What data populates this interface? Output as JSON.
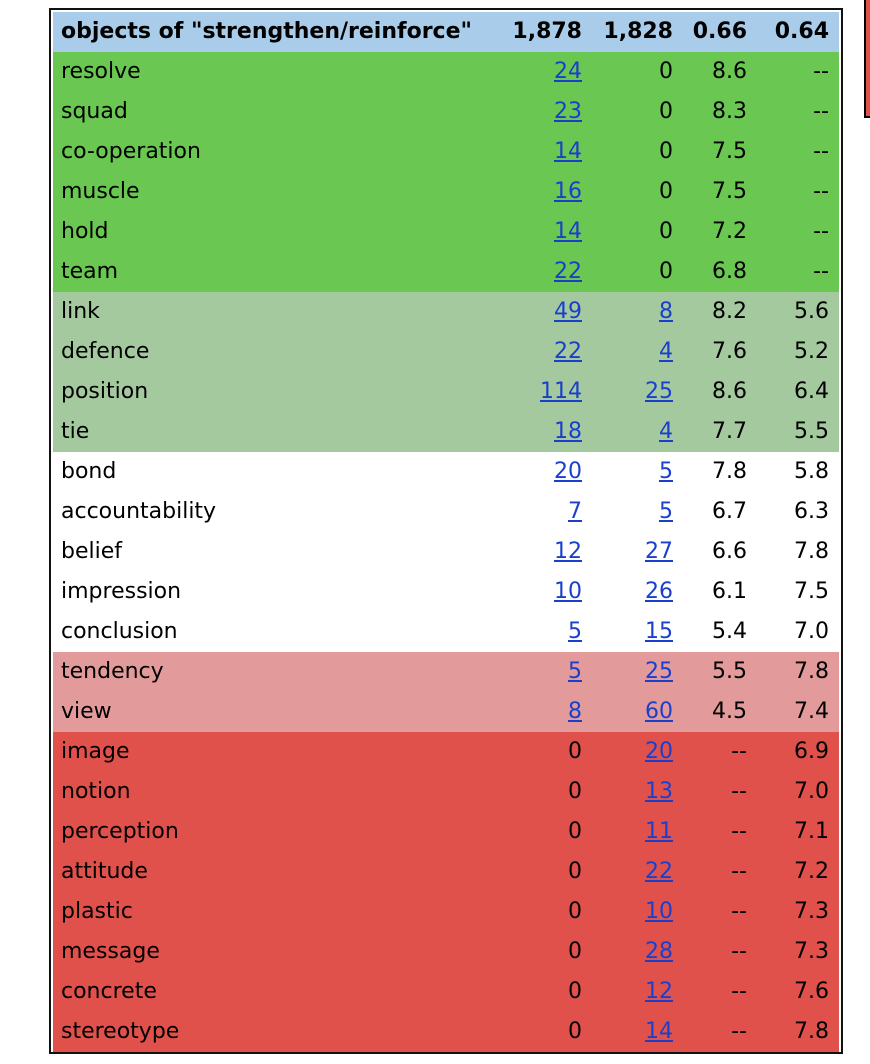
{
  "header": {
    "title": "objects of \"strengthen/reinforce\"",
    "col_a": "1,878",
    "col_b": "1,828",
    "col_c": "0.66",
    "col_d": "0.64"
  },
  "colors": {
    "header": "#a8cce9",
    "group_strong_a": "#69c752",
    "group_mild_a": "#a5c99f",
    "group_neutral": "#ffffff",
    "group_mild_b": "#e29b9a",
    "group_strong_b": "#e0514c",
    "link": "#1a3fcc"
  },
  "rows": [
    {
      "word": "resolve",
      "a": "24",
      "b": "0",
      "c": "8.6",
      "d": "--",
      "group": "g1",
      "a_link": true,
      "b_link": false
    },
    {
      "word": "squad",
      "a": "23",
      "b": "0",
      "c": "8.3",
      "d": "--",
      "group": "g1",
      "a_link": true,
      "b_link": false
    },
    {
      "word": "co-operation",
      "a": "14",
      "b": "0",
      "c": "7.5",
      "d": "--",
      "group": "g1",
      "a_link": true,
      "b_link": false
    },
    {
      "word": "muscle",
      "a": "16",
      "b": "0",
      "c": "7.5",
      "d": "--",
      "group": "g1",
      "a_link": true,
      "b_link": false
    },
    {
      "word": "hold",
      "a": "14",
      "b": "0",
      "c": "7.2",
      "d": "--",
      "group": "g1",
      "a_link": true,
      "b_link": false
    },
    {
      "word": "team",
      "a": "22",
      "b": "0",
      "c": "6.8",
      "d": "--",
      "group": "g1",
      "a_link": true,
      "b_link": false
    },
    {
      "word": "link",
      "a": "49",
      "b": "8",
      "c": "8.2",
      "d": "5.6",
      "group": "g2",
      "a_link": true,
      "b_link": true
    },
    {
      "word": "defence",
      "a": "22",
      "b": "4",
      "c": "7.6",
      "d": "5.2",
      "group": "g2",
      "a_link": true,
      "b_link": true
    },
    {
      "word": "position",
      "a": "114",
      "b": "25",
      "c": "8.6",
      "d": "6.4",
      "group": "g2",
      "a_link": true,
      "b_link": true
    },
    {
      "word": "tie",
      "a": "18",
      "b": "4",
      "c": "7.7",
      "d": "5.5",
      "group": "g2",
      "a_link": true,
      "b_link": true
    },
    {
      "word": "bond",
      "a": "20",
      "b": "5",
      "c": "7.8",
      "d": "5.8",
      "group": "g3",
      "a_link": true,
      "b_link": true
    },
    {
      "word": "accountability",
      "a": "7",
      "b": "5",
      "c": "6.7",
      "d": "6.3",
      "group": "g3",
      "a_link": true,
      "b_link": true
    },
    {
      "word": "belief",
      "a": "12",
      "b": "27",
      "c": "6.6",
      "d": "7.8",
      "group": "g3",
      "a_link": true,
      "b_link": true
    },
    {
      "word": "impression",
      "a": "10",
      "b": "26",
      "c": "6.1",
      "d": "7.5",
      "group": "g3",
      "a_link": true,
      "b_link": true
    },
    {
      "word": "conclusion",
      "a": "5",
      "b": "15",
      "c": "5.4",
      "d": "7.0",
      "group": "g3",
      "a_link": true,
      "b_link": true
    },
    {
      "word": "tendency",
      "a": "5",
      "b": "25",
      "c": "5.5",
      "d": "7.8",
      "group": "g4",
      "a_link": true,
      "b_link": true
    },
    {
      "word": "view",
      "a": "8",
      "b": "60",
      "c": "4.5",
      "d": "7.4",
      "group": "g4",
      "a_link": true,
      "b_link": true
    },
    {
      "word": "image",
      "a": "0",
      "b": "20",
      "c": "--",
      "d": "6.9",
      "group": "g5",
      "a_link": false,
      "b_link": true
    },
    {
      "word": "notion",
      "a": "0",
      "b": "13",
      "c": "--",
      "d": "7.0",
      "group": "g5",
      "a_link": false,
      "b_link": true
    },
    {
      "word": "perception",
      "a": "0",
      "b": "11",
      "c": "--",
      "d": "7.1",
      "group": "g5",
      "a_link": false,
      "b_link": true
    },
    {
      "word": "attitude",
      "a": "0",
      "b": "22",
      "c": "--",
      "d": "7.2",
      "group": "g5",
      "a_link": false,
      "b_link": true
    },
    {
      "word": "plastic",
      "a": "0",
      "b": "10",
      "c": "--",
      "d": "7.3",
      "group": "g5",
      "a_link": false,
      "b_link": true
    },
    {
      "word": "message",
      "a": "0",
      "b": "28",
      "c": "--",
      "d": "7.3",
      "group": "g5",
      "a_link": false,
      "b_link": true
    },
    {
      "word": "concrete",
      "a": "0",
      "b": "12",
      "c": "--",
      "d": "7.6",
      "group": "g5",
      "a_link": false,
      "b_link": true
    },
    {
      "word": "stereotype",
      "a": "0",
      "b": "14",
      "c": "--",
      "d": "7.8",
      "group": "g5",
      "a_link": false,
      "b_link": true
    }
  ]
}
